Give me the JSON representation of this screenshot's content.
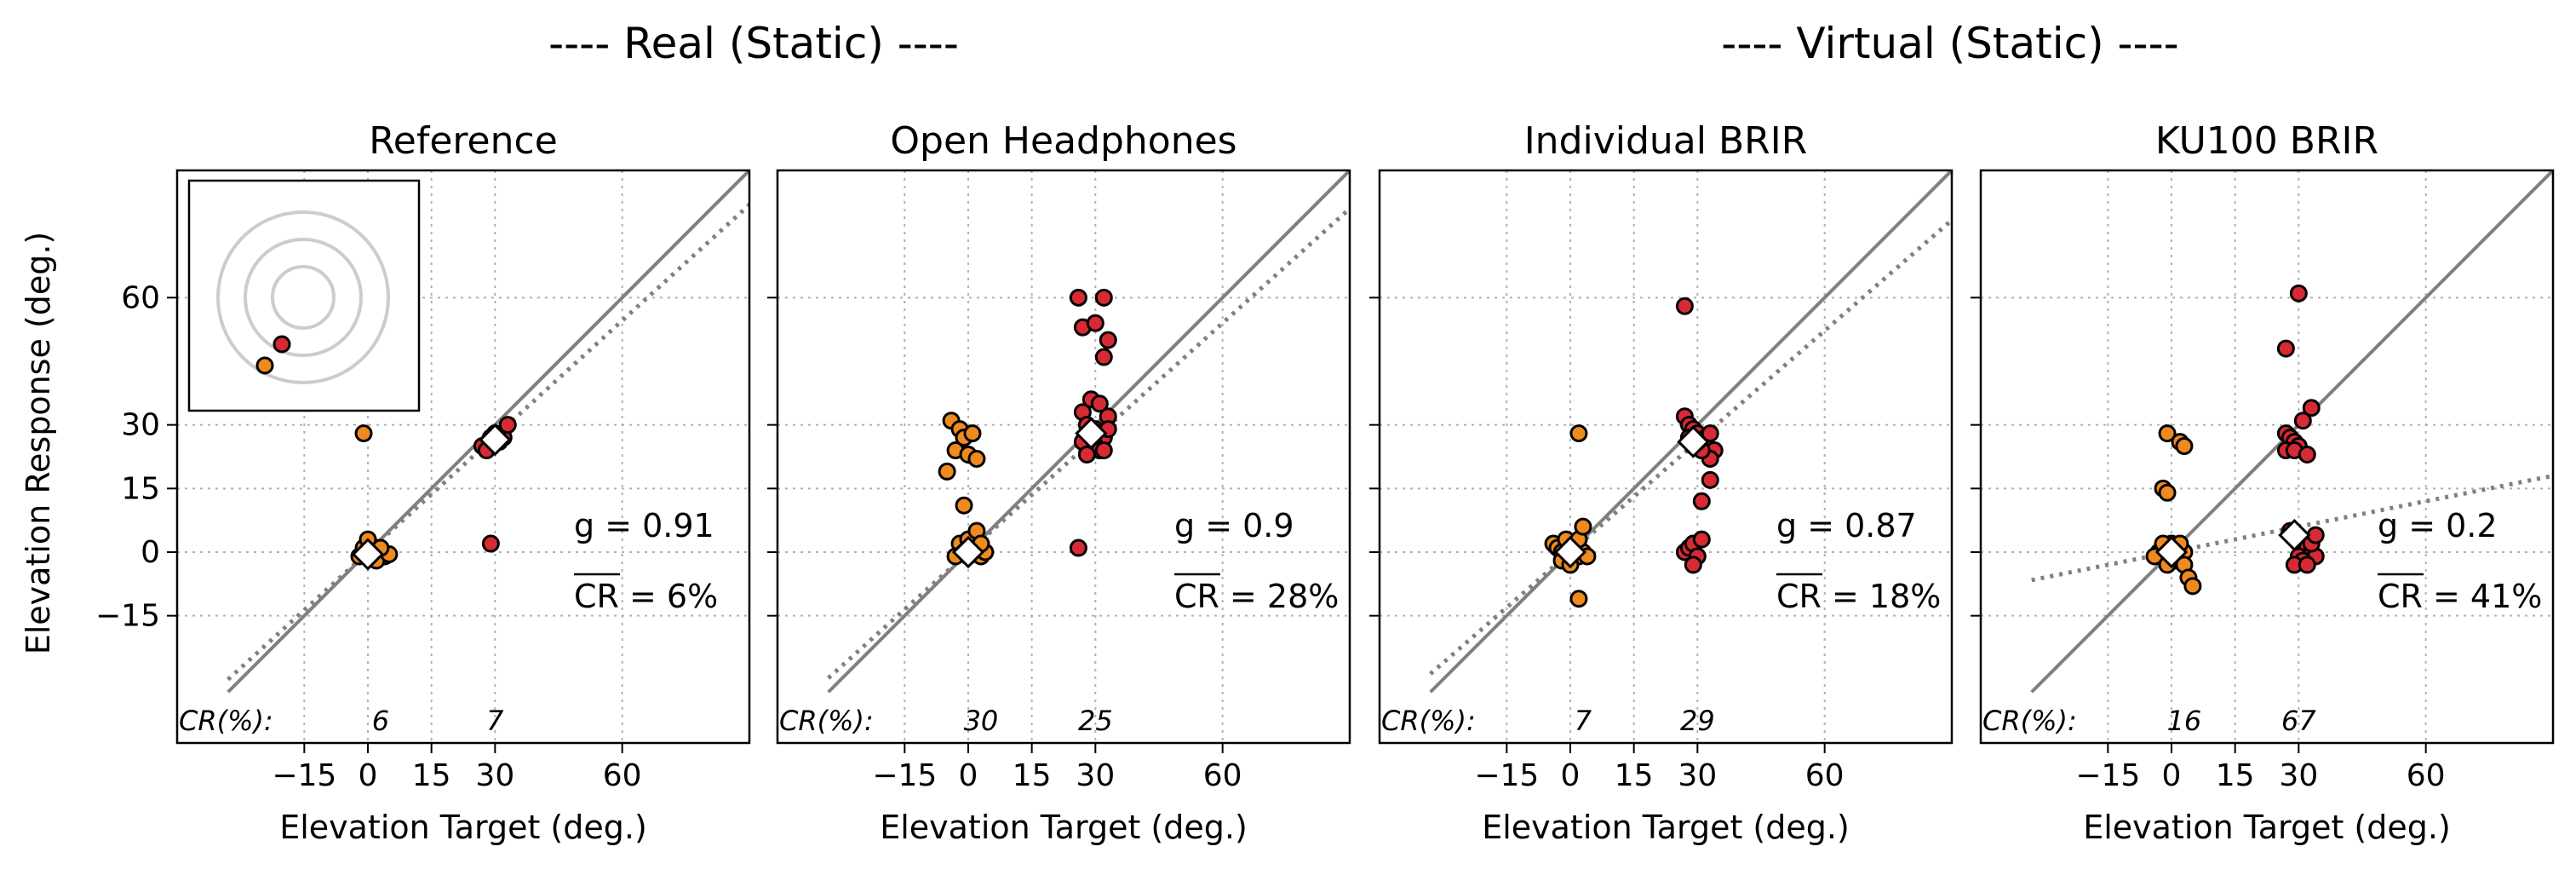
{
  "figure": {
    "group_titles": [
      "---- Real (Static) ----",
      "---- Virtual (Static) ----"
    ],
    "ylabel": "Elevation Response (deg.)",
    "xlabel": "Elevation Target (deg.)",
    "tick_values": [
      -15,
      0,
      15,
      30,
      60
    ],
    "tick_labels": [
      "−15",
      "0",
      "15",
      "30",
      "60"
    ],
    "cr_prefix": "CR(%):",
    "colors": {
      "low_target": "#ef8a1e",
      "high_target": "#d62a34",
      "mean_marker": "#ffffff",
      "identity_line": "#808080",
      "fit_line": "#808080",
      "inset_rings": "#cccccc"
    }
  },
  "chart_data": [
    {
      "type": "scatter",
      "title": "Reference",
      "xlim": [
        -45,
        90
      ],
      "ylim": [
        -45,
        90
      ],
      "grid": true,
      "gain_label": "g = 0.91",
      "cr_label": "CR = 6%",
      "cr_values": [
        "6",
        "7"
      ],
      "inset": {
        "points": [
          {
            "color": "high",
            "dx": -0.25,
            "dy": -0.55
          },
          {
            "color": "low",
            "dx": -0.45,
            "dy": -0.8
          }
        ]
      },
      "fit": {
        "slope": 0.91,
        "intercept": 0,
        "x_range": [
          -33,
          92
        ]
      },
      "mean": [
        [
          0,
          -0.5
        ],
        [
          30,
          26.5
        ]
      ],
      "series": [
        {
          "target": 0,
          "color": "low",
          "points": [
            [
              -2,
              -1
            ],
            [
              0,
              0
            ],
            [
              1,
              -1
            ],
            [
              2,
              1
            ],
            [
              3,
              0
            ],
            [
              4,
              -1
            ],
            [
              -1,
              1
            ],
            [
              1,
              0
            ],
            [
              0,
              3
            ],
            [
              2,
              -2
            ],
            [
              5,
              -0.5
            ],
            [
              3,
              1
            ],
            [
              -1,
              28
            ]
          ]
        },
        {
          "target": 30,
          "color": "high",
          "points": [
            [
              27,
              25
            ],
            [
              29,
              27
            ],
            [
              30,
              28
            ],
            [
              31,
              26
            ],
            [
              28,
              24
            ],
            [
              32,
              27
            ],
            [
              33,
              30
            ],
            [
              29,
              2
            ]
          ]
        }
      ]
    },
    {
      "type": "scatter",
      "title": "Open Headphones",
      "xlim": [
        -45,
        90
      ],
      "ylim": [
        -45,
        90
      ],
      "grid": true,
      "gain_label": "g = 0.9",
      "cr_label": "CR = 28%",
      "cr_values": [
        "30",
        "25"
      ],
      "fit": {
        "slope": 0.9,
        "intercept": 0,
        "x_range": [
          -33,
          92
        ]
      },
      "mean": [
        [
          0,
          0
        ],
        [
          29,
          28
        ]
      ],
      "series": [
        {
          "target": 0,
          "color": "low",
          "points": [
            [
              -4,
              31
            ],
            [
              -2,
              29
            ],
            [
              -1,
              27
            ],
            [
              1,
              28
            ],
            [
              -3,
              24
            ],
            [
              0,
              23
            ],
            [
              2,
              22
            ],
            [
              -5,
              19
            ],
            [
              -1,
              11
            ],
            [
              -2,
              2
            ],
            [
              -1,
              0
            ],
            [
              0,
              -1
            ],
            [
              1,
              0
            ],
            [
              2,
              1
            ],
            [
              3,
              -1
            ],
            [
              4,
              0
            ],
            [
              0,
              3
            ],
            [
              -3,
              -1
            ],
            [
              2,
              5
            ],
            [
              3,
              2
            ]
          ]
        },
        {
          "target": 30,
          "color": "high",
          "points": [
            [
              26,
              60
            ],
            [
              32,
              60
            ],
            [
              27,
              53
            ],
            [
              30,
              54
            ],
            [
              33,
              50
            ],
            [
              32,
              46
            ],
            [
              29,
              36
            ],
            [
              31,
              35
            ],
            [
              27,
              33
            ],
            [
              33,
              32
            ],
            [
              28,
              30
            ],
            [
              30,
              29
            ],
            [
              31,
              28
            ],
            [
              29,
              27
            ],
            [
              32,
              27
            ],
            [
              33,
              29
            ],
            [
              27,
              26
            ],
            [
              30,
              25
            ],
            [
              31,
              24
            ],
            [
              28,
              23
            ],
            [
              32,
              24
            ],
            [
              26,
              1
            ]
          ]
        }
      ]
    },
    {
      "type": "scatter",
      "title": "Individual BRIR",
      "xlim": [
        -45,
        90
      ],
      "ylim": [
        -45,
        90
      ],
      "grid": true,
      "gain_label": "g = 0.87",
      "cr_label": "CR = 18%",
      "cr_values": [
        "7",
        "29"
      ],
      "fit": {
        "slope": 0.87,
        "intercept": 0,
        "x_range": [
          -33,
          92
        ]
      },
      "mean": [
        [
          0,
          0
        ],
        [
          29,
          26
        ]
      ],
      "series": [
        {
          "target": 0,
          "color": "low",
          "points": [
            [
              -4,
              2
            ],
            [
              -3,
              1
            ],
            [
              -2,
              0
            ],
            [
              -1,
              -1
            ],
            [
              0,
              0
            ],
            [
              1,
              1
            ],
            [
              2,
              -1
            ],
            [
              3,
              0
            ],
            [
              -2,
              -2
            ],
            [
              1,
              2
            ],
            [
              -1,
              3
            ],
            [
              0,
              -3
            ],
            [
              2,
              3
            ],
            [
              4,
              -1
            ],
            [
              3,
              6
            ],
            [
              2,
              28
            ],
            [
              2,
              -11
            ]
          ]
        },
        {
          "target": 30,
          "color": "high",
          "points": [
            [
              27,
              58
            ],
            [
              27,
              32
            ],
            [
              28,
              30
            ],
            [
              29,
              29
            ],
            [
              30,
              28
            ],
            [
              31,
              26
            ],
            [
              32,
              27
            ],
            [
              29,
              25
            ],
            [
              33,
              28
            ],
            [
              34,
              24
            ],
            [
              33,
              22
            ],
            [
              31,
              24
            ],
            [
              28,
              27
            ],
            [
              30,
              26
            ],
            [
              33,
              17
            ],
            [
              31,
              12
            ],
            [
              27,
              0
            ],
            [
              28,
              1
            ],
            [
              29,
              2
            ],
            [
              30,
              -1
            ],
            [
              31,
              3
            ],
            [
              29,
              -3
            ]
          ]
        }
      ]
    },
    {
      "type": "scatter",
      "title": "KU100 BRIR",
      "xlim": [
        -45,
        90
      ],
      "ylim": [
        -45,
        90
      ],
      "grid": true,
      "gain_label": "g = 0.2",
      "cr_label": "CR = 41%",
      "cr_values": [
        "16",
        "67"
      ],
      "fit": {
        "slope": 0.2,
        "intercept": 0,
        "x_range": [
          -33,
          92
        ]
      },
      "mean": [
        [
          0,
          0
        ],
        [
          29,
          4
        ]
      ],
      "series": [
        {
          "target": 0,
          "color": "low",
          "points": [
            [
              -1,
              28
            ],
            [
              2,
              26
            ],
            [
              3,
              25
            ],
            [
              -2,
              15
            ],
            [
              -1,
              14
            ],
            [
              -3,
              0
            ],
            [
              -2,
              1
            ],
            [
              -1,
              -1
            ],
            [
              0,
              0
            ],
            [
              1,
              1
            ],
            [
              2,
              -1
            ],
            [
              3,
              0
            ],
            [
              -4,
              -1
            ],
            [
              0,
              2
            ],
            [
              1,
              -2
            ],
            [
              2,
              2
            ],
            [
              -1,
              -3
            ],
            [
              3,
              -3
            ],
            [
              4,
              -6
            ],
            [
              5,
              -8
            ],
            [
              -2,
              2
            ]
          ]
        },
        {
          "target": 30,
          "color": "high",
          "points": [
            [
              30,
              61
            ],
            [
              27,
              48
            ],
            [
              33,
              34
            ],
            [
              31,
              31
            ],
            [
              27,
              28
            ],
            [
              28,
              27
            ],
            [
              29,
              26
            ],
            [
              30,
              25
            ],
            [
              27,
              24
            ],
            [
              29,
              24
            ],
            [
              32,
              23
            ],
            [
              28,
              5
            ],
            [
              29,
              4
            ],
            [
              30,
              3
            ],
            [
              31,
              2
            ],
            [
              32,
              1
            ],
            [
              33,
              0
            ],
            [
              34,
              -1
            ],
            [
              30,
              -1
            ],
            [
              31,
              -2
            ],
            [
              29,
              -3
            ],
            [
              32,
              -3
            ],
            [
              33,
              2
            ],
            [
              34,
              4
            ]
          ]
        }
      ]
    }
  ]
}
